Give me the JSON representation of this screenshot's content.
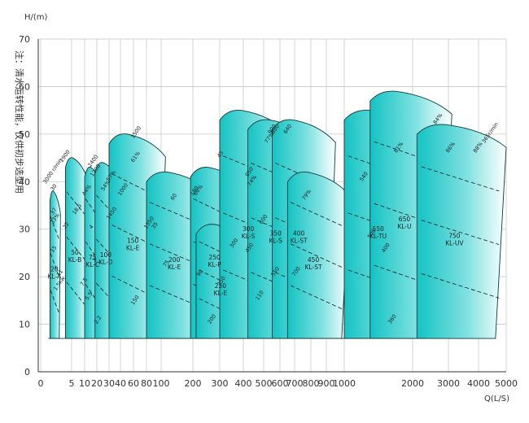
{
  "chart_data": {
    "type": "area",
    "title": "",
    "xlabel": "Q(L/S)",
    "ylabel": "H/(m)",
    "note": "注：清水运转性能，仅供初步选型用",
    "xscale": "log",
    "xlim": [
      0,
      5000
    ],
    "ylim": [
      0,
      70
    ],
    "grid": true,
    "xticks": [
      0,
      5,
      10,
      20,
      30,
      40,
      60,
      80,
      100,
      200,
      300,
      400,
      500,
      600,
      700,
      800,
      900,
      1000,
      2000,
      3000,
      4000,
      5000
    ],
    "yticks": [
      0,
      10,
      20,
      30,
      40,
      50,
      60,
      70
    ],
    "regions": [
      {
        "model": "20 KL-A",
        "q": [
          1.5,
          3.2
        ],
        "h": [
          7,
          38
        ]
      },
      {
        "model": "50 KL-B",
        "q": [
          4,
          12
        ],
        "h": [
          7,
          45
        ]
      },
      {
        "model": "75 KL-C",
        "q": [
          10,
          25
        ],
        "h": [
          7,
          43
        ]
      },
      {
        "model": "100 KL-D",
        "q": [
          18,
          40
        ],
        "h": [
          7,
          44
        ]
      },
      {
        "model": "150 KL-E",
        "q": [
          30,
          110
        ],
        "h": [
          7,
          50
        ]
      },
      {
        "model": "200 KL-E",
        "q": [
          80,
          270
        ],
        "h": [
          7,
          42
        ]
      },
      {
        "model": "250 KL-P",
        "q": [
          190,
          420
        ],
        "h": [
          7,
          43
        ]
      },
      {
        "model": "250 KL-E",
        "q": [
          210,
          450
        ],
        "h": [
          7,
          31
        ]
      },
      {
        "model": "300 KL-S",
        "q": [
          300,
          650
        ],
        "h": [
          7,
          55
        ]
      },
      {
        "model": "350 KL-S",
        "q": [
          420,
          820
        ],
        "h": [
          7,
          53
        ]
      },
      {
        "model": "400 KL-ST",
        "q": [
          550,
          950
        ],
        "h": [
          7,
          53
        ]
      },
      {
        "model": "450 KL-ST",
        "q": [
          650,
          1050
        ],
        "h": [
          7,
          42
        ]
      },
      {
        "model": "550 KL-TU",
        "q": [
          1000,
          2300
        ],
        "h": [
          7,
          55
        ]
      },
      {
        "model": "650 KL-U",
        "q": [
          1300,
          3100
        ],
        "h": [
          7,
          59
        ]
      },
      {
        "model": "750 KL-UV",
        "q": [
          2100,
          5000
        ],
        "h": [
          7,
          52
        ]
      }
    ],
    "annotations": [
      "3000 r/min",
      "2900",
      "2400",
      "1500",
      "1350",
      "1450",
      "1200",
      "1000",
      "950",
      "900",
      "880",
      "700",
      "640",
      "600",
      "550",
      "540",
      "500",
      "450",
      "400",
      "360",
      "300",
      "250",
      "200",
      "180",
      "150",
      "110",
      "90",
      "75",
      "60",
      "45",
      "37",
      "35",
      "30",
      "22",
      "18.5",
      "15",
      "11",
      "7.5",
      "5.5",
      "4",
      "3",
      "2.2",
      "1.5kw",
      "33%",
      "44%",
      "54%",
      "57%",
      "61%",
      "66%",
      "74%",
      "77%",
      "79%",
      "81%",
      "84%",
      "86%",
      "88%",
      "365r/min"
    ]
  }
}
